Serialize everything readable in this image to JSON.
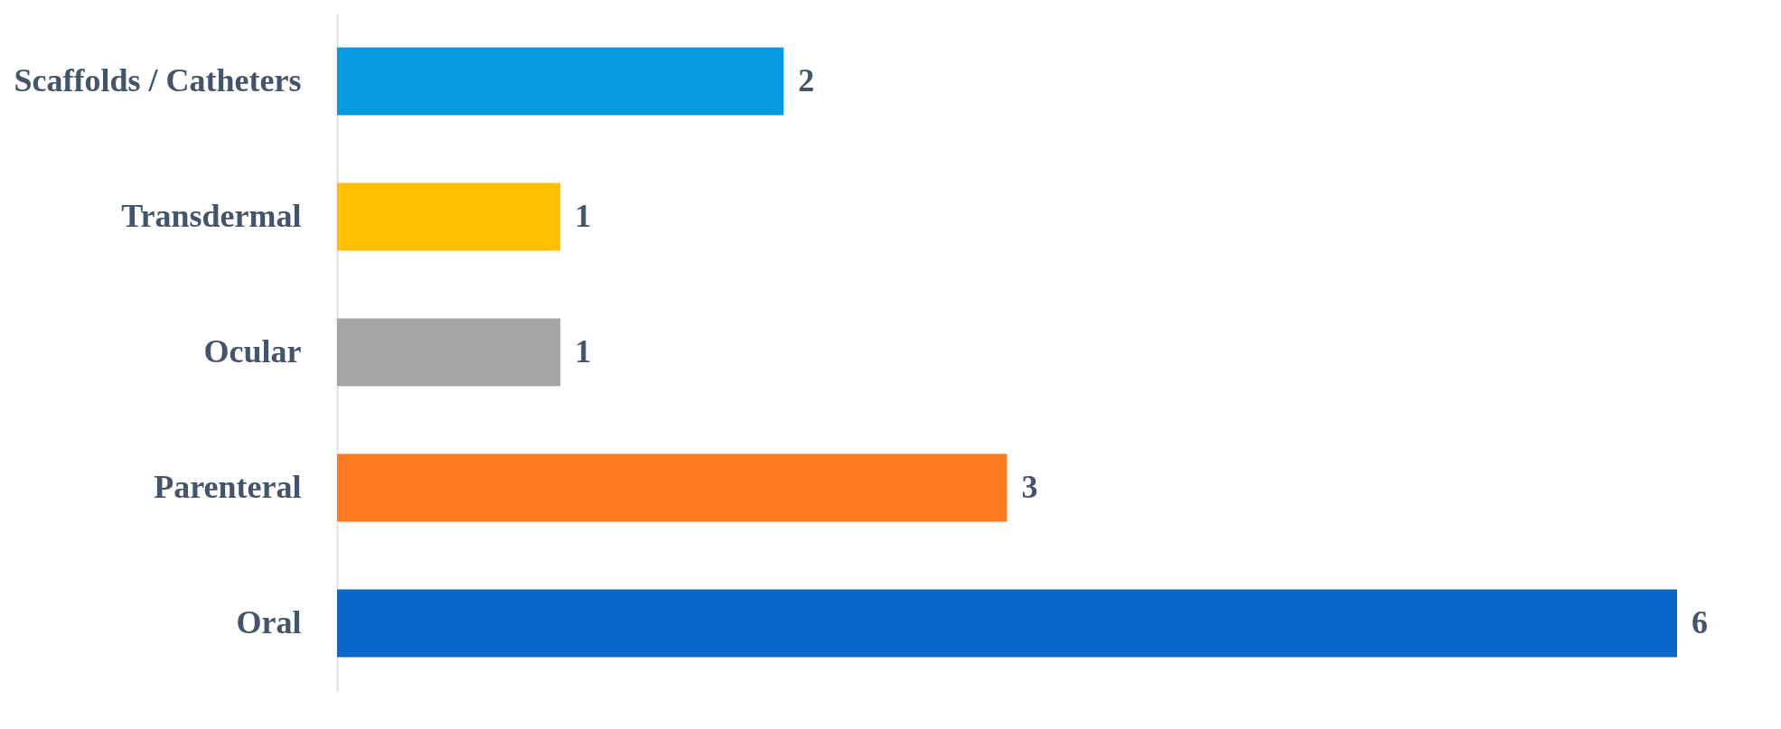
{
  "chart_data": {
    "type": "bar",
    "orientation": "horizontal",
    "categories": [
      "Scaffolds / Catheters",
      "Transdermal",
      "Ocular",
      "Parenteral",
      "Oral"
    ],
    "values": [
      2,
      1,
      1,
      3,
      6
    ],
    "colors": [
      "#069ae0",
      "#ffc000",
      "#a5a5a5",
      "#ff7a1f",
      "#0a66c8"
    ],
    "data_labels": true,
    "grid": false
  }
}
